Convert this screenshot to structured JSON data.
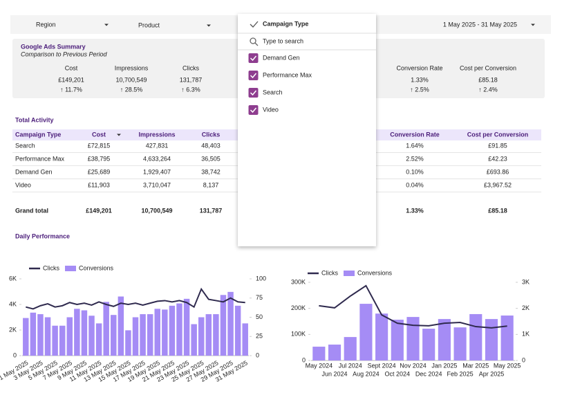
{
  "filters": {
    "region": "Region",
    "product": "Product",
    "date_range": "1 May 2025 - 31 May 2025"
  },
  "dropdown": {
    "title": "Campaign Type",
    "search_placeholder": "Type to search",
    "options": [
      {
        "label": "Demand Gen",
        "checked": true
      },
      {
        "label": "Performance Max",
        "checked": true
      },
      {
        "label": "Search",
        "checked": true
      },
      {
        "label": "Video",
        "checked": true
      }
    ]
  },
  "summary": {
    "title": "Google Ads Summary",
    "subtitle": "Comparison to Previous Period",
    "metrics": [
      {
        "label": "Cost",
        "value": "£149,201",
        "change": "↑ 11.7%",
        "color": "#e53935"
      },
      {
        "label": "Impressions",
        "value": "10,700,549",
        "change": "↑ 28.5%",
        "color": "#2e9e44"
      },
      {
        "label": "Clicks",
        "value": "131,787",
        "change": "↑ 6.3%",
        "color": "#2e9e44"
      },
      {
        "label": "Conversion Rate",
        "value": "1.33%",
        "change": "↑ 2.5%",
        "color": "#2e9e44"
      },
      {
        "label": "Cost per Conversion",
        "value": "£85.18",
        "change": "↑ 2.4%",
        "color": "#e53935"
      }
    ]
  },
  "table": {
    "title": "Total Activity",
    "headers": [
      "Campaign Type",
      "Cost",
      "Impressions",
      "Clicks",
      "Conversion Rate",
      "Cost per Conversion"
    ],
    "rows": [
      [
        "Search",
        "£72,815",
        "427,831",
        "48,403",
        "1.64%",
        "£91.85"
      ],
      [
        "Performance Max",
        "£38,795",
        "4,633,264",
        "36,505",
        "2.52%",
        "£42.23"
      ],
      [
        "Demand Gen",
        "£25,689",
        "1,929,407",
        "38,742",
        "0.10%",
        "£693.86"
      ],
      [
        "Video",
        "£11,903",
        "3,710,047",
        "8,137",
        "0.04%",
        "£3,967.52"
      ]
    ],
    "total": [
      "Grand total",
      "£149,201",
      "10,700,549",
      "131,787",
      "1.33%",
      "£85.18"
    ]
  },
  "section_title": "Daily Performance",
  "chart_data": [
    {
      "type": "bar_line",
      "categories": [
        "1 May 2025",
        null,
        "3 May 2025",
        null,
        "5 May 2025",
        null,
        "7 May 2025",
        null,
        "9 May 2025",
        null,
        "11 May 2025",
        null,
        "13 May 2025",
        null,
        "15 May 2025",
        null,
        "17 May 2025",
        null,
        "19 May 2025",
        null,
        "21 May 2025",
        null,
        "23 May 2025",
        null,
        "25 May 2025",
        null,
        "27 May 2025",
        null,
        "29 May 2025",
        null,
        "31 May 2025"
      ],
      "series": [
        {
          "name": "Clicks",
          "type": "line",
          "color": "#2f2a4e",
          "values": [
            3800,
            3650,
            3900,
            4050,
            3800,
            3900,
            4150,
            4000,
            4100,
            3950,
            4200,
            4000,
            3850,
            4100,
            4000,
            4100,
            3950,
            4100,
            4250,
            4300,
            4200,
            4300,
            4150,
            3800,
            5200,
            4400,
            4300,
            4200,
            4500,
            4200,
            4150
          ]
        },
        {
          "name": "Conversions",
          "type": "bar",
          "color": "#a58cf5",
          "axis": "y2",
          "values": [
            49,
            56,
            54,
            50,
            39,
            39,
            50,
            61,
            59,
            52,
            42,
            70,
            53,
            77,
            33,
            50,
            54,
            54,
            61,
            60,
            65,
            68,
            74,
            41,
            50,
            54,
            54,
            79,
            83,
            65,
            42
          ]
        }
      ],
      "ylim": [
        0,
        6000
      ],
      "yticks": [
        0,
        {
          "value": 2000,
          "label": "2K"
        },
        {
          "value": 4000,
          "label": "4K"
        },
        {
          "value": 6000,
          "label": "6K"
        }
      ],
      "y2lim": [
        0,
        100
      ],
      "y2ticks": [
        0,
        25,
        50,
        75,
        100
      ],
      "legend": "top-left"
    },
    {
      "type": "bar_line",
      "categories": [
        "May 2024",
        "Jun 2024",
        "Jul 2024",
        "Aug 2024",
        "Sept 2024",
        "Oct 2024",
        "Nov 2024",
        "Dec 2024",
        "Jan 2025",
        "Feb 2025",
        "Mar 2025",
        "Apr 2025",
        "May 2025"
      ],
      "series": [
        {
          "name": "Clicks",
          "type": "line",
          "color": "#2f2a4e",
          "values": [
            210000,
            202000,
            247000,
            287000,
            175000,
            143000,
            135000,
            133000,
            143000,
            146000,
            130000,
            125000,
            132000
          ]
        },
        {
          "name": "Conversions",
          "type": "bar",
          "color": "#a58cf5",
          "axis": "y2",
          "values": [
            530,
            610,
            900,
            2175,
            1800,
            1565,
            1670,
            1220,
            1590,
            1270,
            1780,
            1590,
            1725
          ]
        }
      ],
      "ylim": [
        0,
        300000
      ],
      "yticks": [
        0,
        {
          "value": 100000,
          "label": "100K"
        },
        {
          "value": 200000,
          "label": "200K"
        },
        {
          "value": 300000,
          "label": "300K"
        }
      ],
      "y2lim": [
        0,
        3000
      ],
      "y2ticks": [
        0,
        {
          "value": 1000,
          "label": "1K"
        },
        {
          "value": 2000,
          "label": "2K"
        },
        {
          "value": 3000,
          "label": "3K"
        }
      ],
      "legend": "top-left"
    }
  ]
}
